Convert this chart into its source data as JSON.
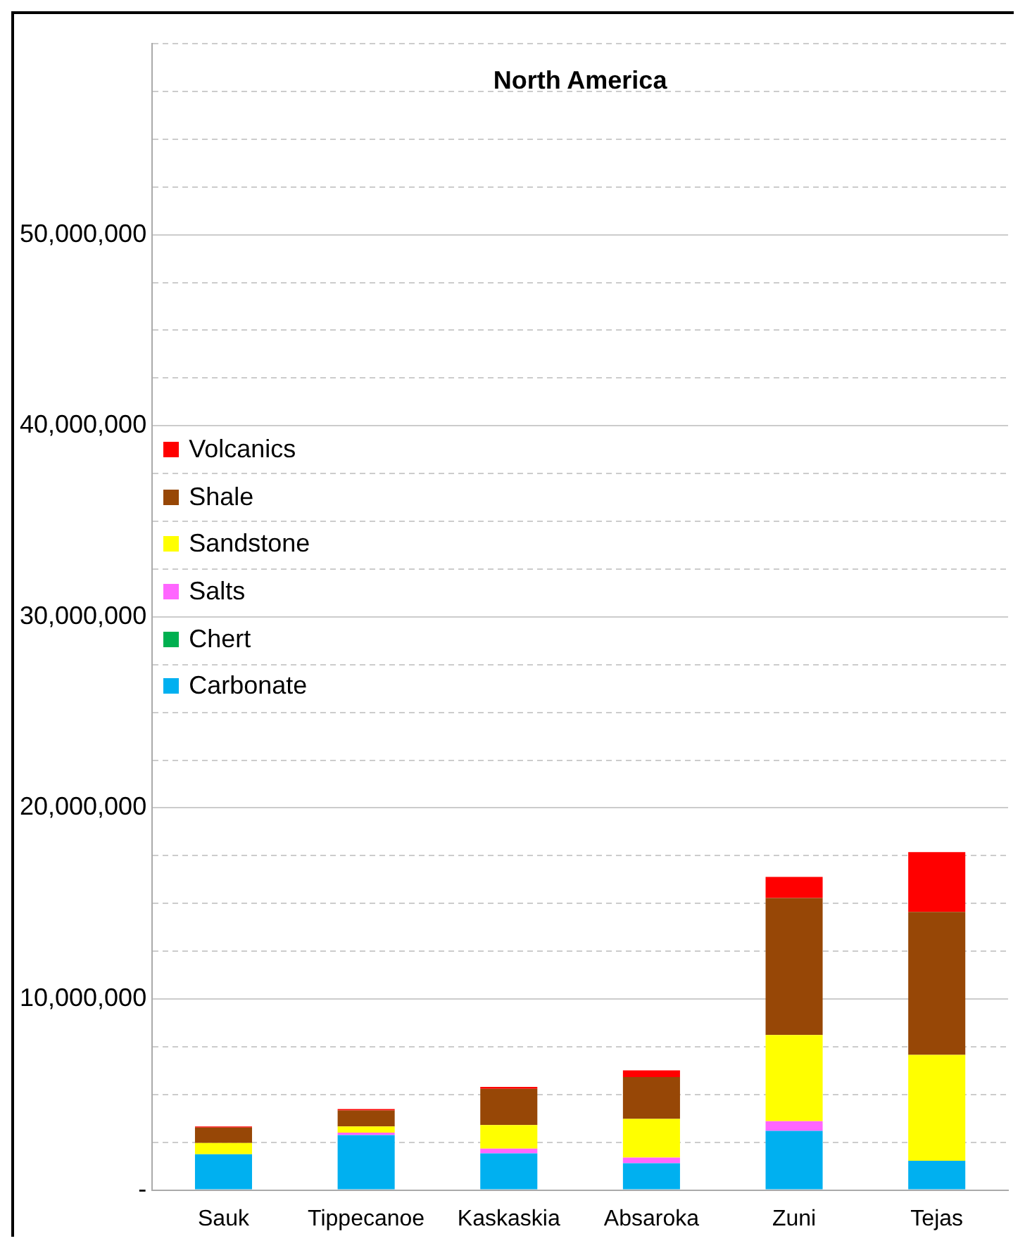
{
  "chart_data": {
    "type": "bar",
    "title": "North America",
    "stacked": true,
    "grid": "y",
    "legend": "left",
    "categories": [
      "Sauk",
      "Tippecanoe",
      "Kaskaskia",
      "Absaroka",
      "Zuni",
      "Tejas"
    ],
    "series": [
      {
        "name": "Carbonate",
        "color": "#00b0f0",
        "values": [
          1870000,
          2880000,
          1920000,
          1400000,
          3100000,
          1530000
        ]
      },
      {
        "name": "Chert",
        "color": "#00b050",
        "values": [
          0,
          0,
          0,
          0,
          0,
          0
        ]
      },
      {
        "name": "Salts",
        "color": "#ff66ff",
        "values": [
          0,
          120000,
          250000,
          300000,
          500000,
          0
        ]
      },
      {
        "name": "Sandstone",
        "color": "#ffff00",
        "values": [
          590000,
          330000,
          1230000,
          2020000,
          4510000,
          5540000
        ]
      },
      {
        "name": "Shale",
        "color": "#974706",
        "values": [
          810000,
          830000,
          1900000,
          2190000,
          7170000,
          7490000
        ]
      },
      {
        "name": "Volcanics",
        "color": "#ff0000",
        "values": [
          60000,
          80000,
          100000,
          350000,
          1110000,
          3130000
        ]
      }
    ],
    "ylim": [
      0,
      60000000
    ],
    "yticks": [
      {
        "value": 0,
        "label": "-"
      },
      {
        "value": 2500000,
        "label": null
      },
      {
        "value": 5000000,
        "label": null
      },
      {
        "value": 7500000,
        "label": null
      },
      {
        "value": 10000000,
        "label": "10,000,000"
      },
      {
        "value": 12500000,
        "label": null
      },
      {
        "value": 15000000,
        "label": null
      },
      {
        "value": 17500000,
        "label": null
      },
      {
        "value": 20000000,
        "label": "20,000,000"
      },
      {
        "value": 22500000,
        "label": null
      },
      {
        "value": 25000000,
        "label": null
      },
      {
        "value": 27500000,
        "label": null
      },
      {
        "value": 30000000,
        "label": "30,000,000"
      },
      {
        "value": 32500000,
        "label": null
      },
      {
        "value": 35000000,
        "label": null
      },
      {
        "value": 37500000,
        "label": null
      },
      {
        "value": 40000000,
        "label": "40,000,000"
      },
      {
        "value": 42500000,
        "label": null
      },
      {
        "value": 45000000,
        "label": null
      },
      {
        "value": 47500000,
        "label": null
      },
      {
        "value": 50000000,
        "label": "50,000,000"
      },
      {
        "value": 52500000,
        "label": null
      },
      {
        "value": 55000000,
        "label": null
      },
      {
        "value": 57500000,
        "label": null
      },
      {
        "value": 60000000,
        "label": null
      }
    ]
  }
}
